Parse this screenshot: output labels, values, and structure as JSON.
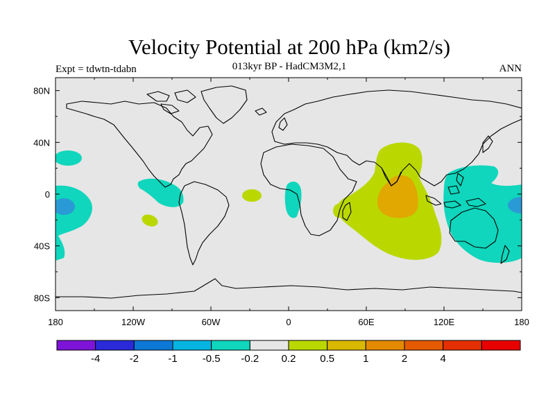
{
  "title": "Velocity Potential at 200 hPa (km2/s)",
  "subtitle": "013kyr BP - HadCM3M2,1",
  "left_label": "Expt = tdwtn-tdabn",
  "right_label": "ANN",
  "lat_ticks": [
    "80N",
    "40N",
    "0",
    "40S",
    "80S"
  ],
  "lon_ticks": [
    "180",
    "120W",
    "60W",
    "0",
    "60E",
    "120E",
    "180"
  ],
  "colorbar": {
    "colors": [
      "#7d14d8",
      "#2a2ad8",
      "#0d78d6",
      "#05b4e0",
      "#0fd6bc",
      "#e6e6e6",
      "#bad800",
      "#d8b800",
      "#e48a00",
      "#e45a00",
      "#e43000",
      "#e80000"
    ],
    "labels": [
      "-4",
      "-2",
      "-1",
      "-0.5",
      "-0.2",
      "0.2",
      "0.5",
      "1",
      "2",
      "4"
    ]
  },
  "colors": {
    "background": "#e6e6e6",
    "positive_weak": "#bad800",
    "positive_mid": "#e0a800",
    "negative_weak": "#0fd6bc",
    "negative_mid": "#2a9ad6",
    "coastline": "#000000"
  }
}
